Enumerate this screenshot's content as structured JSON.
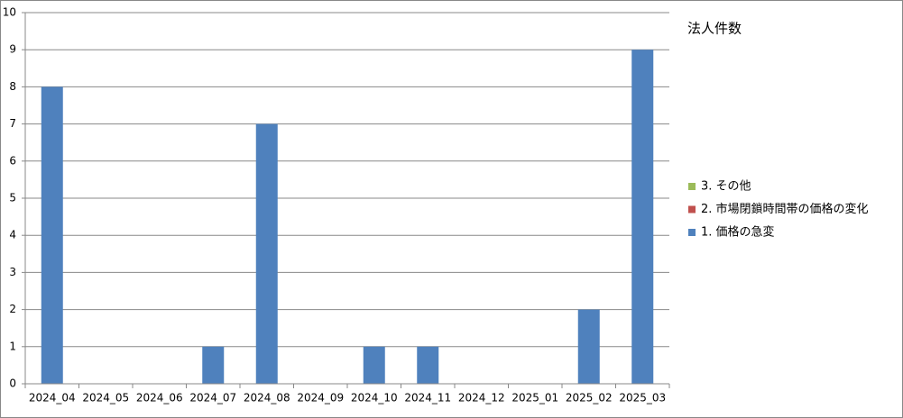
{
  "chart_data": {
    "type": "stacked_bar",
    "title": "法人件数",
    "categories": [
      "2024_04",
      "2024_05",
      "2024_06",
      "2024_07",
      "2024_08",
      "2024_09",
      "2024_10",
      "2024_11",
      "2024_12",
      "2025_01",
      "2025_02",
      "2025_03"
    ],
    "series": [
      {
        "name": "1. 価格の急変",
        "color": "#4f81bd",
        "values": [
          8,
          0,
          0,
          1,
          7,
          0,
          1,
          1,
          0,
          0,
          2,
          9
        ]
      },
      {
        "name": "2. 市場閉鎖時間帯の価格の変化",
        "color": "#c0504d",
        "values": [
          0,
          0,
          0,
          0,
          0,
          0,
          0,
          0,
          0,
          0,
          0,
          0
        ]
      },
      {
        "name": "3. その他",
        "color": "#9bbb59",
        "values": [
          0,
          0,
          0,
          0,
          0,
          0,
          0,
          0,
          0,
          0,
          0,
          0
        ]
      }
    ],
    "ylim": [
      0,
      10
    ],
    "yticks": [
      0,
      1,
      2,
      3,
      4,
      5,
      6,
      7,
      8,
      9,
      10
    ],
    "grid": true,
    "legend": "right"
  }
}
